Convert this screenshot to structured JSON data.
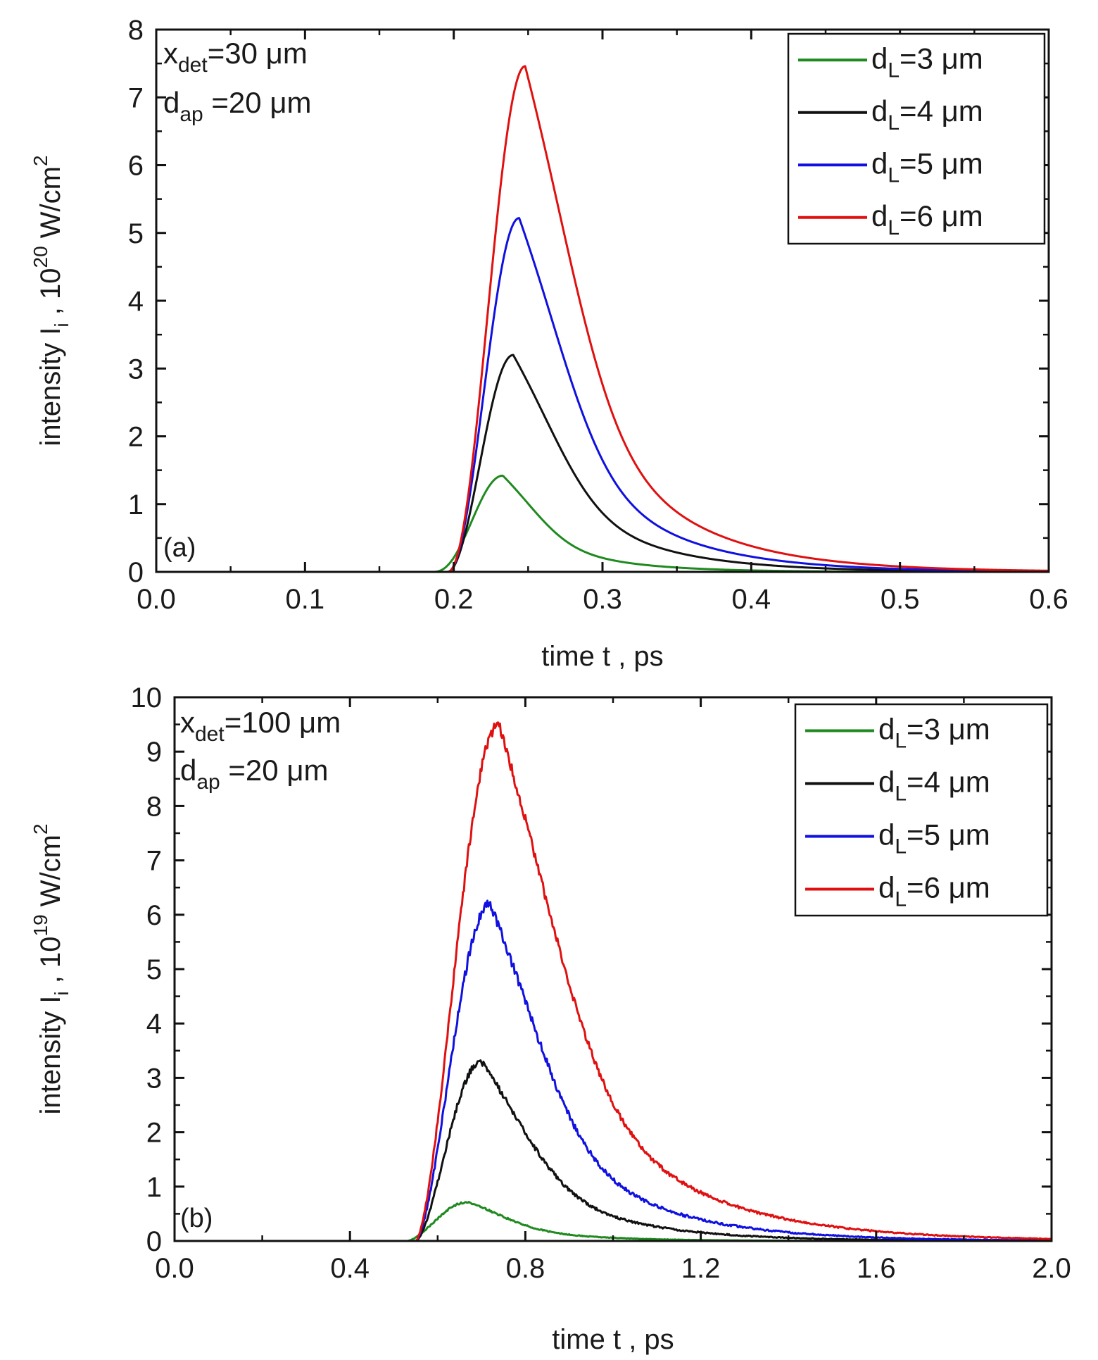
{
  "chart_data": [
    {
      "type": "line",
      "panel_label": "(a)",
      "xlabel": "time t , ps",
      "ylabel": {
        "main": "intensity I",
        "sub": "i",
        "mid": " , 10",
        "sup": "20",
        "unit": " W/cm",
        "unit_sup": "2"
      },
      "xlim": [
        0,
        0.6
      ],
      "ylim": [
        0,
        8
      ],
      "xticks": [
        "0.0",
        "0.1",
        "0.2",
        "0.3",
        "0.4",
        "0.5",
        "0.6"
      ],
      "yticks": [
        "0",
        "1",
        "2",
        "3",
        "4",
        "5",
        "6",
        "7",
        "8"
      ],
      "annotations": [
        {
          "main": "x",
          "sub": "det",
          "rest": "=30 μm"
        },
        {
          "main": "d",
          "sub": "ap",
          "rest": " =20 μm"
        }
      ],
      "legend_position": "top-right",
      "series": [
        {
          "name": "d_L=3 μm",
          "label_main": "d",
          "label_sub": "L",
          "label_rest": "=3 μm",
          "color": "#1f8a1f",
          "peak": 1.42,
          "t_peak": 0.233,
          "t_start": 0.186,
          "rise_shape": 1.5,
          "decay_tau": 0.055,
          "noise": 0.0
        },
        {
          "name": "d_L=4 μm",
          "label_main": "d",
          "label_sub": "L",
          "label_rest": "=4 μm",
          "color": "#111111",
          "peak": 3.2,
          "t_peak": 0.24,
          "t_start": 0.196,
          "rise_shape": 1.2,
          "decay_tau": 0.07,
          "noise": 0.0
        },
        {
          "name": "d_L=5 μm",
          "label_main": "d",
          "label_sub": "L",
          "label_rest": "=5 μm",
          "color": "#1010e0",
          "peak": 5.22,
          "t_peak": 0.244,
          "t_start": 0.196,
          "rise_shape": 1.25,
          "decay_tau": 0.072,
          "noise": 0.0
        },
        {
          "name": "d_L=6 μm",
          "label_main": "d",
          "label_sub": "L",
          "label_rest": "=6 μm",
          "color": "#e01010",
          "peak": 7.46,
          "t_peak": 0.248,
          "t_start": 0.196,
          "rise_shape": 1.3,
          "decay_tau": 0.075,
          "noise": 0.0
        }
      ]
    },
    {
      "type": "line",
      "panel_label": "(b)",
      "xlabel": "time t , ps",
      "ylabel": {
        "main": "intensity I",
        "sub": "i",
        "mid": " , 10",
        "sup": "19",
        "unit": " W/cm",
        "unit_sup": "2"
      },
      "xlim": [
        0,
        2.0
      ],
      "ylim": [
        0,
        10
      ],
      "xticks": [
        "0.0",
        "0.4",
        "0.8",
        "1.2",
        "1.6",
        "2.0"
      ],
      "yticks": [
        "0",
        "1",
        "2",
        "3",
        "4",
        "5",
        "6",
        "7",
        "8",
        "9",
        "10"
      ],
      "annotations": [
        {
          "main": "x",
          "sub": "det",
          "rest": "=100 μm"
        },
        {
          "main": "d",
          "sub": "ap",
          "rest": " =20 μm"
        }
      ],
      "legend_position": "top-right",
      "series": [
        {
          "name": "d_L=3 μm",
          "label_main": "d",
          "label_sub": "L",
          "label_rest": "=3 μm",
          "color": "#1f8a1f",
          "peak": 0.72,
          "t_peak": 0.67,
          "t_start": 0.53,
          "rise_shape": 1.0,
          "decay_tau": 0.2,
          "noise": 0.02
        },
        {
          "name": "d_L=4 μm",
          "label_main": "d",
          "label_sub": "L",
          "label_rest": "=4 μm",
          "color": "#111111",
          "peak": 3.3,
          "t_peak": 0.7,
          "t_start": 0.55,
          "rise_shape": 1.0,
          "decay_tau": 0.24,
          "noise": 0.06
        },
        {
          "name": "d_L=5 μm",
          "label_main": "d",
          "label_sub": "L",
          "label_rest": "=5 μm",
          "color": "#1010e0",
          "peak": 6.2,
          "t_peak": 0.72,
          "t_start": 0.55,
          "rise_shape": 1.0,
          "decay_tau": 0.26,
          "noise": 0.09
        },
        {
          "name": "d_L=6 μm",
          "label_main": "d",
          "label_sub": "L",
          "label_rest": "=6 μm",
          "color": "#e01010",
          "peak": 9.5,
          "t_peak": 0.74,
          "t_start": 0.55,
          "rise_shape": 1.0,
          "decay_tau": 0.3,
          "noise": 0.1
        }
      ]
    }
  ]
}
